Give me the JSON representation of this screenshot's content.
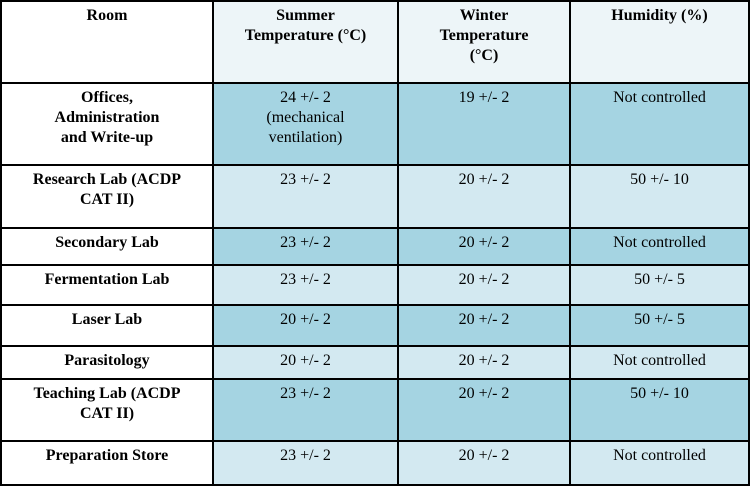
{
  "table": {
    "colors": {
      "header_bg": "#edf5f8",
      "row_dark": "#a5d4e2",
      "row_light": "#d3e9f1",
      "room_bg": "#ffffff",
      "border": "#000000"
    },
    "columns": {
      "room": "Room",
      "summer": "Summer\nTemperature (°C)",
      "winter": "Winter\nTemperature\n(°C)",
      "humidity": "Humidity (%)"
    },
    "rows": [
      {
        "room": "Offices,\nAdministration\nand Write-up",
        "summer": "24 +/- 2\n(mechanical\nventilation)",
        "winter": "19 +/- 2",
        "humidity": "Not controlled"
      },
      {
        "room": "Research Lab (ACDP\nCAT II)",
        "summer": "23 +/- 2",
        "winter": "20 +/- 2",
        "humidity": "50 +/- 10"
      },
      {
        "room": "Secondary Lab",
        "summer": "23 +/- 2",
        "winter": "20 +/- 2",
        "humidity": "Not controlled"
      },
      {
        "room": "Fermentation Lab",
        "summer": "23 +/- 2",
        "winter": "20 +/- 2",
        "humidity": "50 +/- 5"
      },
      {
        "room": "Laser Lab",
        "summer": "20 +/- 2",
        "winter": "20 +/- 2",
        "humidity": "50 +/- 5"
      },
      {
        "room": "Parasitology",
        "summer": "20 +/- 2",
        "winter": "20 +/- 2",
        "humidity": "Not controlled"
      },
      {
        "room": "Teaching Lab (ACDP\nCAT II)",
        "summer": "23 +/- 2",
        "winter": "20 +/- 2",
        "humidity": "50 +/- 10"
      },
      {
        "room": "Preparation Store",
        "summer": "23 +/- 2",
        "winter": "20 +/- 2",
        "humidity": "Not controlled"
      }
    ]
  }
}
